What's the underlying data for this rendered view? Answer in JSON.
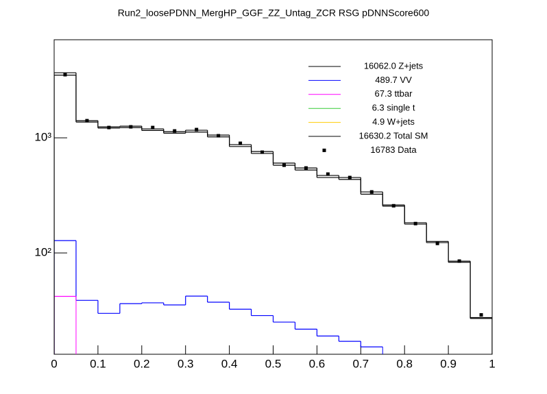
{
  "chart_data": {
    "type": "histogram",
    "title": "Run2_loosePDNN_MergHP_GGF_ZZ_Untag_ZCR RSG  pDNNScore600",
    "bins": [
      0,
      0.05,
      0.1,
      0.15,
      0.2,
      0.25,
      0.3,
      0.35,
      0.4,
      0.45,
      0.5,
      0.55,
      0.6,
      0.65,
      0.7,
      0.75,
      0.8,
      0.85,
      0.9,
      0.95,
      1
    ],
    "log_y": true,
    "xlim": [
      0,
      1
    ],
    "xticks": [
      0,
      0.1,
      0.2,
      0.3,
      0.4,
      0.5,
      0.6,
      0.7,
      0.8,
      0.9,
      1
    ],
    "ylim": [
      13.2,
      7100
    ],
    "yticks": [
      {
        "value": 100,
        "label": "10²"
      },
      {
        "value": 1000,
        "label": "10³"
      }
    ],
    "series": [
      {
        "name": "16062.0 Z+jets",
        "color": "#000000",
        "style": "step",
        "values": [
          3500,
          1369,
          1215,
          1226,
          1158,
          1096,
          1121,
          1019,
          840,
          731,
          578,
          525,
          452,
          435,
          324,
          255,
          178,
          123,
          83,
          27
        ]
      },
      {
        "name": "489.7 VV",
        "color": "#0000ff",
        "style": "step",
        "values": [
          128,
          38.8,
          29.9,
          36.3,
          36.9,
          35.4,
          42.2,
          37.4,
          32.5,
          28.6,
          25.1,
          21.8,
          19.0,
          17.1,
          15.3,
          null,
          null,
          null,
          null,
          null
        ]
      },
      {
        "name": "67.3 ttbar",
        "color": "#ff00ff",
        "style": "step",
        "values": [
          42,
          null,
          null,
          null,
          null,
          null,
          null,
          null,
          null,
          null,
          null,
          null,
          null,
          null,
          null,
          null,
          null,
          null,
          null,
          null
        ]
      },
      {
        "name": "6.3 single t",
        "color": "#33cc33",
        "style": "step",
        "values": [
          null,
          null,
          null,
          null,
          null,
          null,
          null,
          null,
          null,
          null,
          null,
          null,
          null,
          null,
          null,
          null,
          null,
          null,
          null,
          null
        ]
      },
      {
        "name": "4.9 W+jets",
        "color": "#ffcc00",
        "style": "step",
        "values": [
          null,
          null,
          null,
          null,
          null,
          null,
          null,
          null,
          null,
          null,
          null,
          null,
          null,
          null,
          null,
          null,
          null,
          null,
          null,
          null
        ]
      },
      {
        "name": "16630.2 Total SM",
        "color": "#000000",
        "style": "step",
        "values": [
          3670,
          1408,
          1245,
          1262,
          1195,
          1131,
          1163,
          1056,
          872,
          760,
          603,
          547,
          471,
          452,
          339,
          261,
          183,
          126,
          84.9,
          27.5
        ]
      },
      {
        "name": "16783 Data",
        "color": "#000000",
        "style": "points",
        "values": [
          3530,
          1408,
          1228,
          1245,
          1228,
          1147,
          1179,
          1042,
          896,
          750,
          578,
          547,
          484,
          452,
          339,
          257,
          180,
          121,
          85,
          29
        ]
      }
    ]
  }
}
